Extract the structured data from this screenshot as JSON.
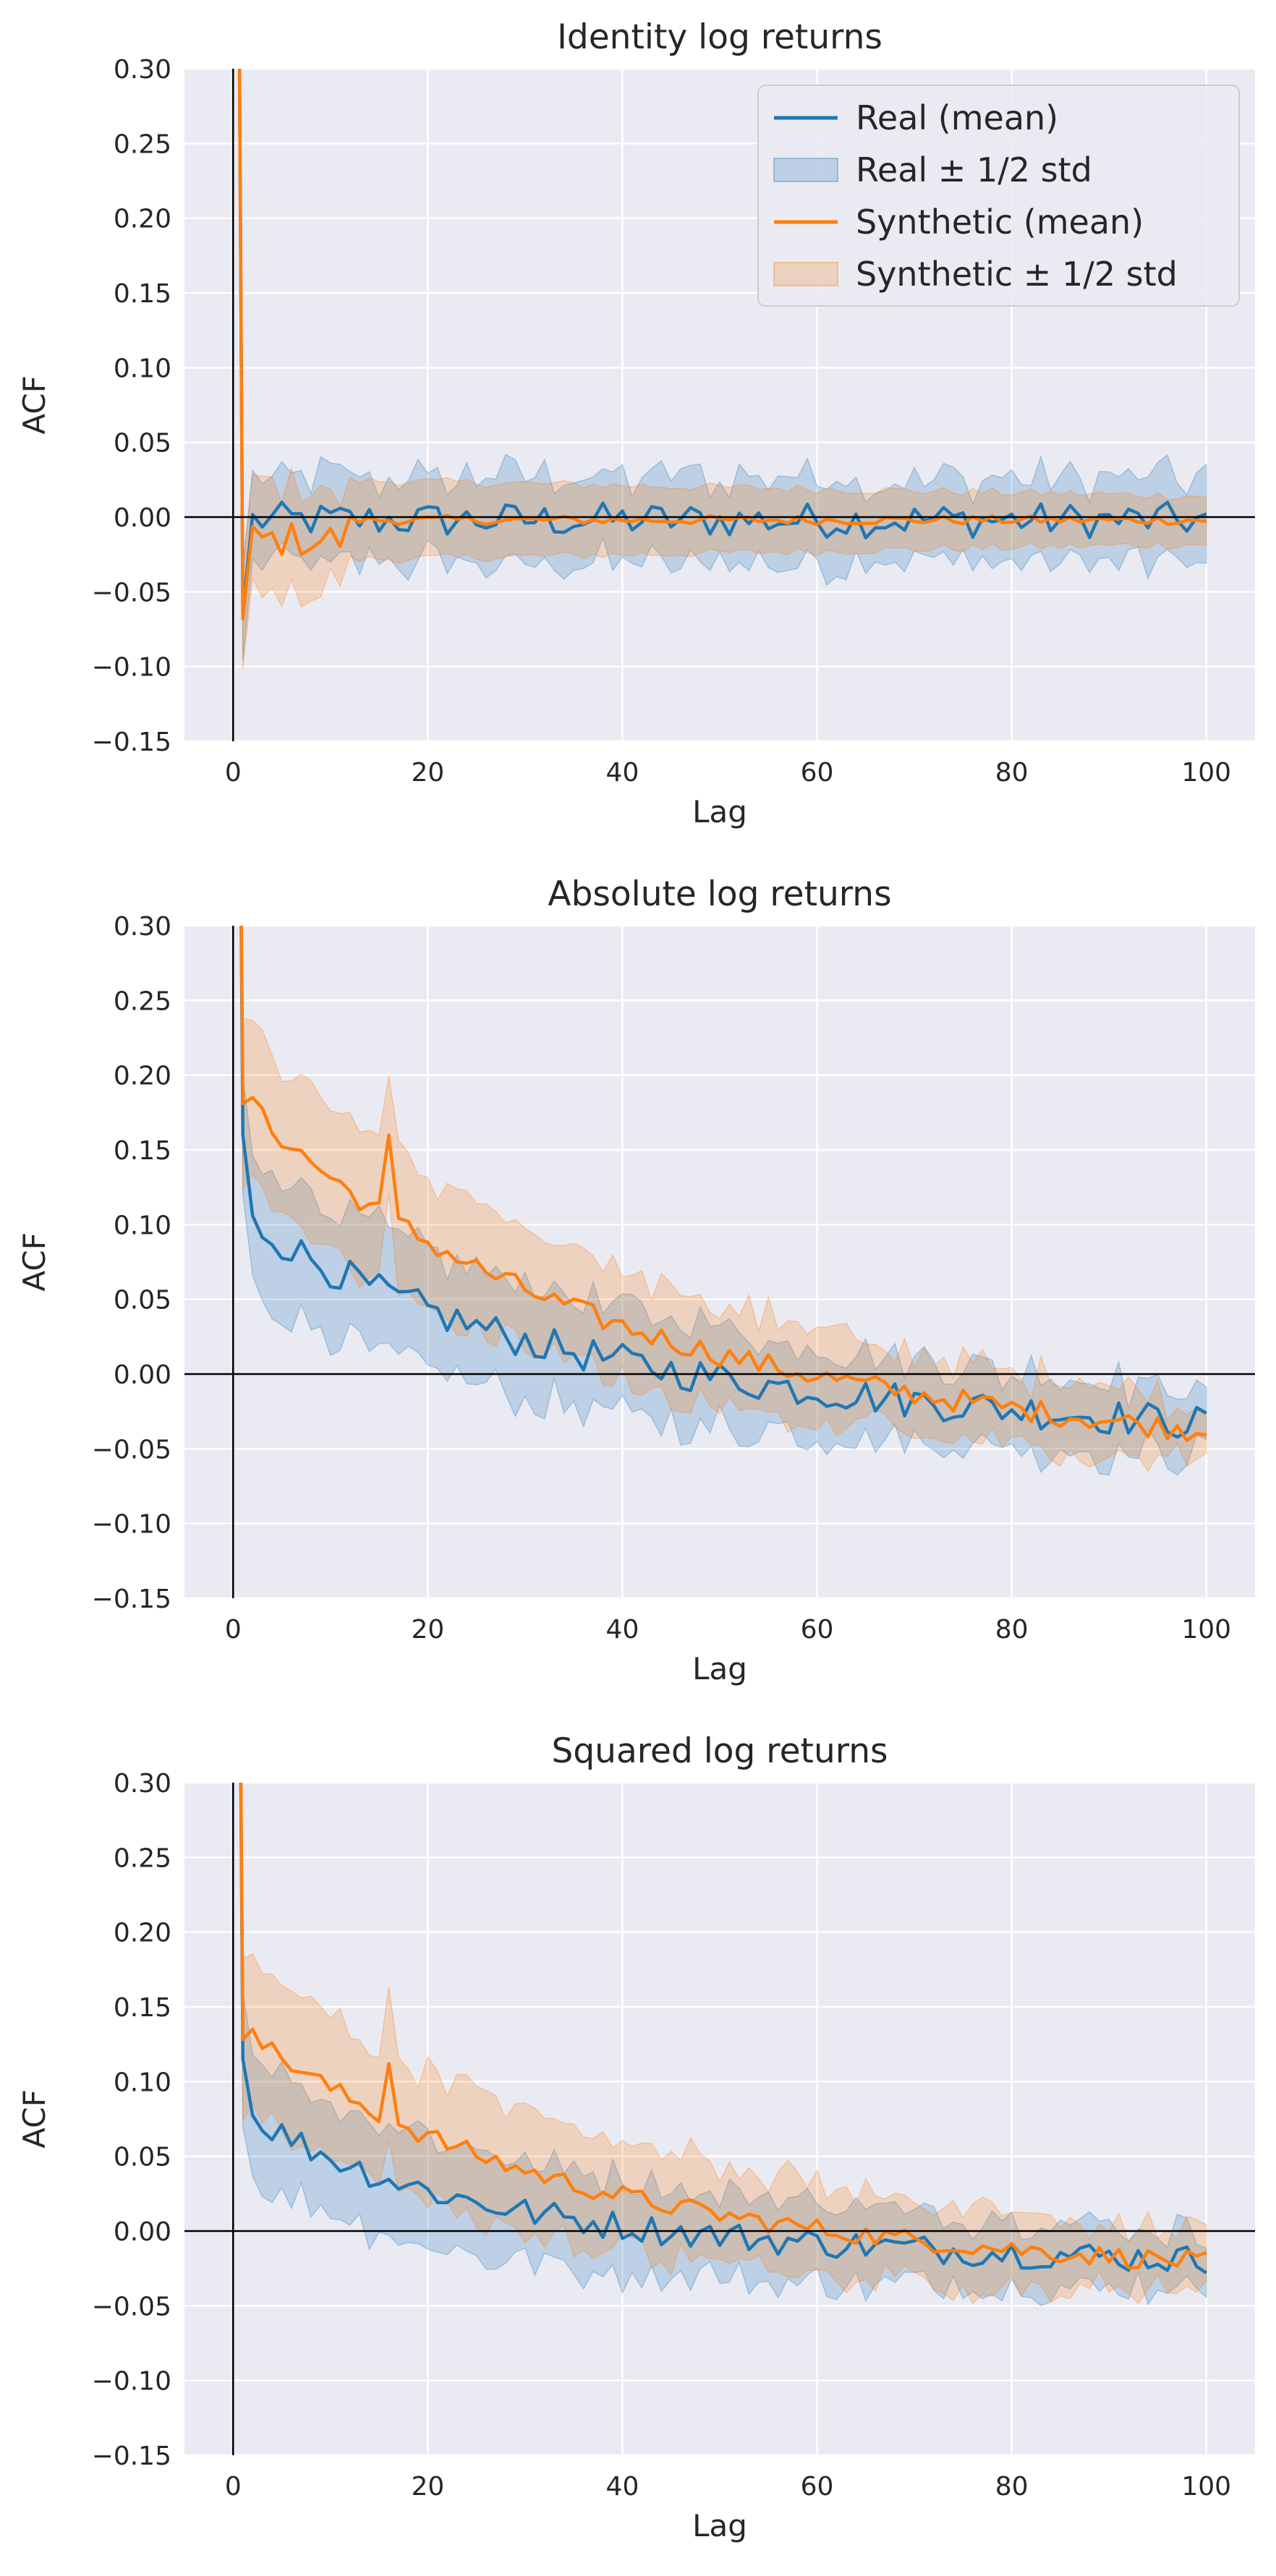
{
  "colors": {
    "real": "#1f77b4",
    "synthetic": "#ff7f0e",
    "axes_bg": "#eaeaf2",
    "grid": "#ffffff",
    "zero_line": "#000000"
  },
  "legend": {
    "entries": [
      "Real (mean)",
      "Real ± 1/2 std",
      "Synthetic (mean)",
      "Synthetic ± 1/2 std"
    ],
    "placement": "top-right",
    "panel": 0
  },
  "chart_data": [
    {
      "type": "line",
      "title": "Identity log returns",
      "xlabel": "Lag",
      "ylabel": "ACF",
      "xlim": [
        -5,
        105
      ],
      "ylim": [
        -0.15,
        0.3
      ],
      "xticks": [
        0,
        20,
        40,
        60,
        80,
        100
      ],
      "yticks": [
        -0.15,
        -0.1,
        -0.05,
        0.0,
        0.05,
        0.1,
        0.15,
        0.2,
        0.25,
        0.3
      ],
      "tick_labels_x": [
        "0",
        "20",
        "40",
        "60",
        "80",
        "100"
      ],
      "tick_labels_y": [
        "−0.15",
        "−0.10",
        "−0.05",
        "0.00",
        "0.05",
        "0.10",
        "0.15",
        "0.20",
        "0.25",
        "0.30"
      ],
      "grid": true,
      "series": [
        {
          "name": "Real (mean)",
          "values_at_lag": {
            "0": 1.0,
            "1": -0.065,
            "20": 0.026,
            "43": -0.035,
            "100": -0.022
          },
          "band": "Real ± 1/2 std"
        },
        {
          "name": "Synthetic (mean)",
          "values_at_lag": {
            "0": 1.0,
            "1": -0.068,
            "5": -0.038,
            "100": -0.003
          },
          "band": "Synthetic ± 1/2 std"
        }
      ]
    },
    {
      "type": "line",
      "title": "Absolute log returns",
      "xlabel": "Lag",
      "ylabel": "ACF",
      "xlim": [
        -5,
        105
      ],
      "ylim": [
        -0.15,
        0.3
      ],
      "xticks": [
        0,
        20,
        40,
        60,
        80,
        100
      ],
      "yticks": [
        -0.15,
        -0.1,
        -0.05,
        0.0,
        0.05,
        0.1,
        0.15,
        0.2,
        0.25,
        0.3
      ],
      "tick_labels_x": [
        "0",
        "20",
        "40",
        "60",
        "80",
        "100"
      ],
      "tick_labels_y": [
        "−0.15",
        "−0.10",
        "−0.05",
        "0.00",
        "0.05",
        "0.10",
        "0.15",
        "0.20",
        "0.25",
        "0.30"
      ],
      "grid": true,
      "series": [
        {
          "name": "Real (mean)",
          "values_at_lag": {
            "0": 1.0,
            "1": 0.16,
            "20": 0.045,
            "60": 0.01,
            "100": -0.022
          },
          "band": "Real ± 1/2 std"
        },
        {
          "name": "Synthetic (mean)",
          "values_at_lag": {
            "0": 1.0,
            "2": 0.185,
            "16": 0.16,
            "32": 0.1,
            "100": -0.034
          },
          "band": "Synthetic ± 1/2 std"
        }
      ]
    },
    {
      "type": "line",
      "title": "Squared log returns",
      "xlabel": "Lag",
      "ylabel": "ACF",
      "xlim": [
        -5,
        105
      ],
      "ylim": [
        -0.15,
        0.3
      ],
      "xticks": [
        0,
        20,
        40,
        60,
        80,
        100
      ],
      "yticks": [
        -0.15,
        -0.1,
        -0.05,
        0.0,
        0.05,
        0.1,
        0.15,
        0.2,
        0.25,
        0.3
      ],
      "tick_labels_x": [
        "0",
        "20",
        "40",
        "60",
        "80",
        "100"
      ],
      "tick_labels_y": [
        "−0.15",
        "−0.10",
        "−0.05",
        "0.00",
        "0.05",
        "0.10",
        "0.15",
        "0.20",
        "0.25",
        "0.30"
      ],
      "grid": true,
      "series": [
        {
          "name": "Real (mean)",
          "values_at_lag": {
            "0": 1.0,
            "1": 0.115,
            "20": 0.03,
            "60": 0.0,
            "100": -0.018
          },
          "band": "Real ± 1/2 std"
        },
        {
          "name": "Synthetic (mean)",
          "values_at_lag": {
            "0": 1.0,
            "2": 0.135,
            "16": 0.112,
            "32": 0.068,
            "100": -0.02
          },
          "band": "Synthetic ± 1/2 std"
        }
      ]
    }
  ]
}
